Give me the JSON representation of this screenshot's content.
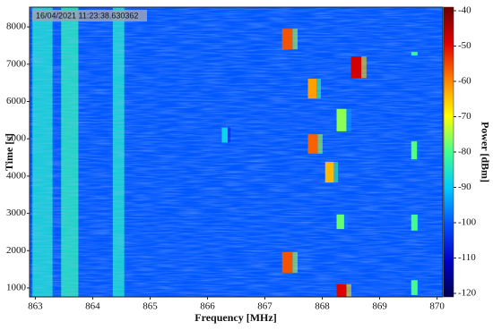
{
  "chart_data": {
    "type": "spectrogram",
    "annotation": "16/04/2021 11:23:38.630362",
    "x_label": "Frequency [MHz]",
    "y_label": "Time [s]",
    "colorbar_label": "Power [dBm]",
    "xlim": [
      862.9,
      870.1
    ],
    "xticks": [
      863,
      864,
      865,
      866,
      867,
      868,
      869,
      870
    ],
    "ylim": [
      760,
      8530
    ],
    "yticks": [
      1000,
      2000,
      3000,
      4000,
      5000,
      6000,
      7000,
      8000
    ],
    "clim": [
      -121,
      -39
    ],
    "cticks": [
      -40,
      -50,
      -60,
      -70,
      -80,
      -90,
      -100,
      -110,
      -120
    ],
    "colormap": [
      "#000050",
      "#0000c8",
      "#0050ff",
      "#00c8ff",
      "#40ff90",
      "#ffff00",
      "#ff8000",
      "#e00000",
      "#6a0000"
    ],
    "background_power": -100,
    "bands": [
      {
        "freq": [
          862.95,
          863.3
        ],
        "power": -86
      },
      {
        "freq": [
          863.45,
          863.75
        ],
        "power": -84
      },
      {
        "freq": [
          864.35,
          864.55
        ],
        "power": -86
      }
    ],
    "bursts": [
      {
        "freq": [
          867.3,
          867.48
        ],
        "time": [
          7400,
          7950
        ],
        "power": -56
      },
      {
        "freq": [
          868.5,
          868.68
        ],
        "time": [
          6630,
          7210
        ],
        "power": -48
      },
      {
        "freq": [
          867.75,
          867.9
        ],
        "time": [
          6080,
          6610
        ],
        "power": -62
      },
      {
        "freq": [
          868.25,
          868.42
        ],
        "time": [
          5200,
          5800
        ],
        "power": -76
      },
      {
        "freq": [
          867.75,
          867.92
        ],
        "time": [
          4600,
          5120
        ],
        "power": -57
      },
      {
        "freq": [
          868.05,
          868.2
        ],
        "time": [
          3830,
          4380
        ],
        "power": -64
      },
      {
        "freq": [
          869.55,
          869.65
        ],
        "time": [
          4450,
          4930
        ],
        "power": -79
      },
      {
        "freq": [
          868.25,
          868.38
        ],
        "time": [
          2580,
          2970
        ],
        "power": -78
      },
      {
        "freq": [
          869.55,
          869.66
        ],
        "time": [
          2540,
          2970
        ],
        "power": -80
      },
      {
        "freq": [
          867.3,
          867.48
        ],
        "time": [
          1410,
          1960
        ],
        "power": -56
      },
      {
        "freq": [
          868.25,
          868.42
        ],
        "time": [
          760,
          1100
        ],
        "power": -49
      },
      {
        "freq": [
          869.55,
          869.66
        ],
        "time": [
          810,
          1210
        ],
        "power": -80
      },
      {
        "freq": [
          869.55,
          869.66
        ],
        "time": [
          7230,
          7330
        ],
        "power": -82
      },
      {
        "freq": [
          866.25,
          866.35
        ],
        "time": [
          4900,
          5300
        ],
        "power": -88
      }
    ]
  }
}
